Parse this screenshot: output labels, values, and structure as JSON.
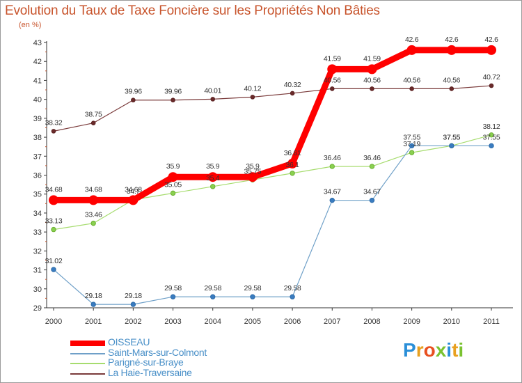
{
  "title": "Evolution du Taux de Taxe Foncière sur les Propriétés Non Bâties",
  "unit": "(en %)",
  "logo": {
    "letters": [
      "P",
      "r",
      "o",
      "x",
      "i",
      "t",
      "i"
    ],
    "colors": [
      "#2a8fd8",
      "#e8a020",
      "#e85020",
      "#7ac230",
      "#2a8fd8",
      "#e8a020",
      "#7ac230"
    ]
  },
  "chart_data": {
    "type": "line",
    "title": "Evolution du Taux de Taxe Foncière sur les Propriétés Non Bâties",
    "ylabel": "(en %)",
    "xlabel": "",
    "x": [
      "2000",
      "2001",
      "2002",
      "2003",
      "2004",
      "2005",
      "2006",
      "2007",
      "2008",
      "2009",
      "2010",
      "2011"
    ],
    "ylim": [
      29,
      43
    ],
    "yticks": [
      "29",
      "30",
      "31",
      "32",
      "33",
      "34",
      "35",
      "36",
      "37",
      "38",
      "39",
      "40",
      "41",
      "42",
      "43"
    ],
    "grid": false,
    "legend": "bottom-left",
    "series": [
      {
        "name": "OISSEAU",
        "color": "#ff0000",
        "values": [
          34.68,
          34.68,
          34.68,
          35.9,
          35.9,
          35.9,
          36.61,
          41.59,
          41.59,
          42.6,
          42.6,
          42.6
        ],
        "labels": [
          "34.68",
          "34.68",
          "34.68",
          "35.9",
          "35.9",
          "35.9",
          "36.61",
          "41.59",
          "41.59",
          "42.6",
          "42.6",
          "42.6"
        ]
      },
      {
        "name": "Saint-Mars-sur-Colmont",
        "color": "#6fa0c8",
        "values": [
          31.02,
          29.18,
          29.18,
          29.58,
          29.58,
          29.58,
          29.58,
          34.67,
          34.67,
          37.55,
          37.55,
          37.55
        ],
        "labels": [
          "31.02",
          "29.18",
          "29.18",
          "29.58",
          "29.58",
          "29.58",
          "29.58",
          "34.67",
          "34.67",
          "37.55",
          "37.55",
          "37.55"
        ]
      },
      {
        "name": "Parigné-sur-Braye",
        "color": "#a6dc6e",
        "values": [
          33.13,
          33.46,
          34.7,
          35.05,
          35.4,
          35.75,
          36.1,
          36.46,
          36.46,
          37.19,
          37.55,
          38.12
        ],
        "labels": [
          "33.13",
          "33.46",
          "34.7",
          "35.05",
          "35.4",
          "35.75",
          "36.1",
          "36.46",
          "36.46",
          "37.19",
          "37.55",
          "38.12"
        ]
      },
      {
        "name": "La Haie-Traversaine",
        "color": "#7a3a3a",
        "values": [
          38.32,
          38.75,
          39.96,
          39.96,
          40.01,
          40.12,
          40.32,
          40.56,
          40.56,
          40.56,
          40.56,
          40.72
        ],
        "labels": [
          "38.32",
          "38.75",
          "39.96",
          "39.96",
          "40.01",
          "40.12",
          "40.32",
          "40.56",
          "40.56",
          "40.56",
          "40.56",
          "40.72"
        ]
      }
    ]
  }
}
